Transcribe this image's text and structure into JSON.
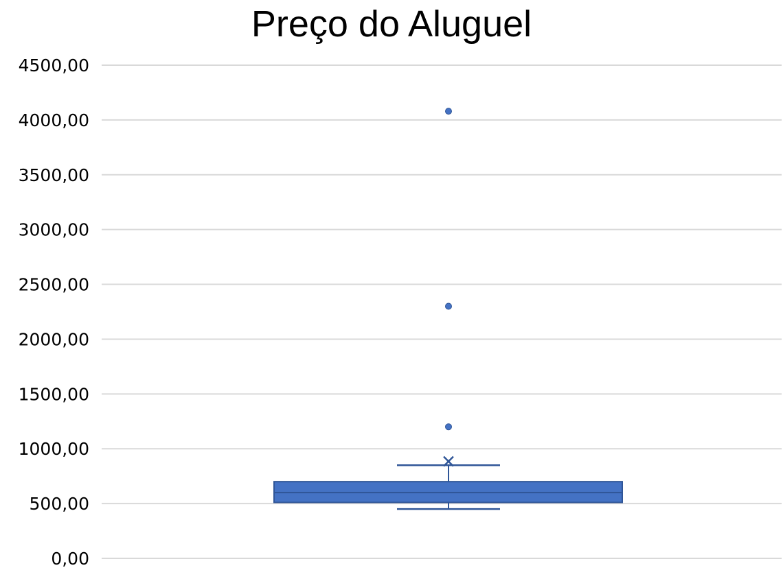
{
  "chart_data": {
    "type": "box",
    "title": "Preço do Aluguel",
    "xlabel": "",
    "ylabel": "",
    "ylim": [
      0,
      4500
    ],
    "yticks": [
      "0,00",
      "500,00",
      "1000,00",
      "1500,00",
      "2000,00",
      "2500,00",
      "3000,00",
      "3500,00",
      "4000,00",
      "4500,00"
    ],
    "ytick_values": [
      0,
      500,
      1000,
      1500,
      2000,
      2500,
      3000,
      3500,
      4000,
      4500
    ],
    "grid": true,
    "series": [
      {
        "whisker_low": 450,
        "q1": 510,
        "median": 600,
        "q3": 700,
        "whisker_high": 850,
        "mean": 885,
        "outliers": [
          1200,
          2300,
          4080
        ]
      }
    ],
    "colors": {
      "box_fill": "#4472C4",
      "box_stroke": "#2F5597",
      "gridline": "#D9D9D9"
    }
  }
}
